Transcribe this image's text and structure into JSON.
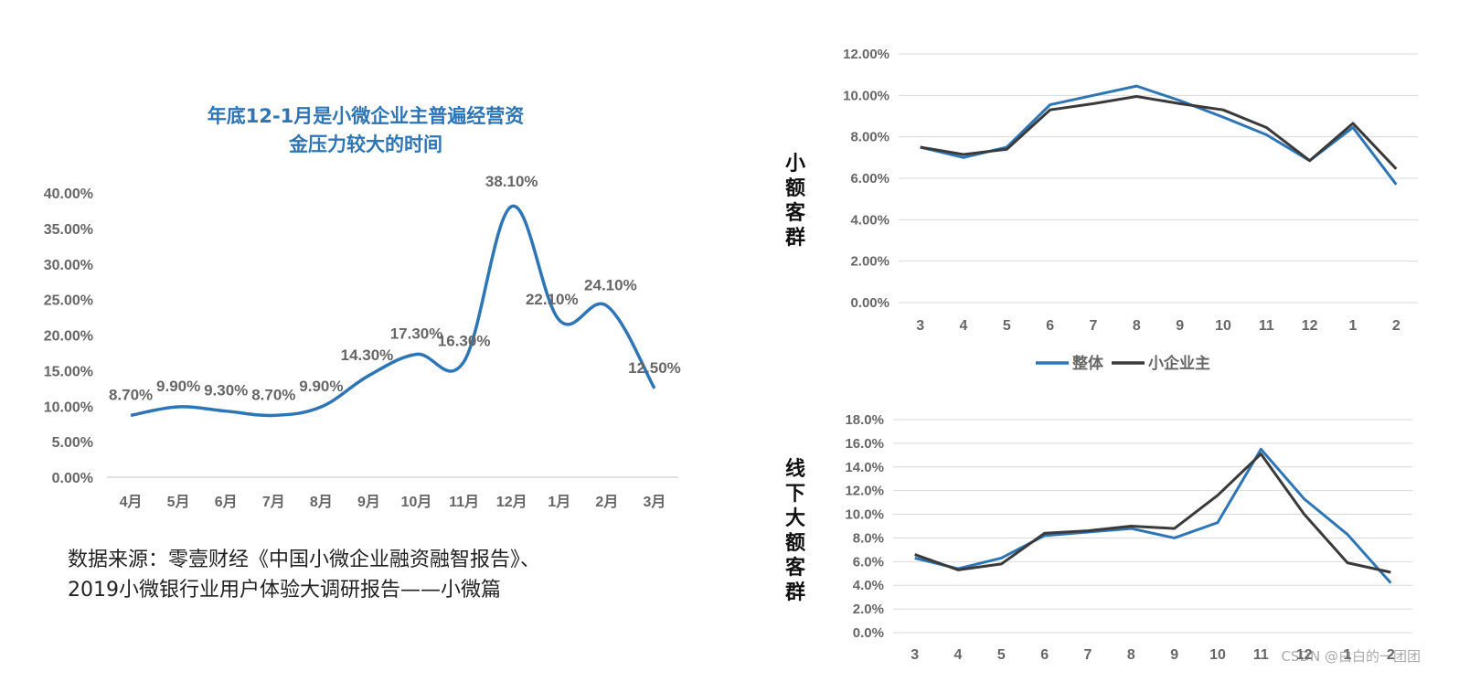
{
  "watermark": "CSDN @白白的一团团",
  "source_line1": "数据来源：零壹财经《中国小微企业融资融智报告》、",
  "source_line2": "2019小微银行业用户体验大调研报告——小微篇",
  "colors": {
    "primary": "#2e75b6",
    "secondary": "#3a3a3a",
    "grid": "#d9d9d9",
    "tick": "#666666"
  },
  "chart_data": [
    {
      "type": "line",
      "title_line1": "年底12-1月是小微企业主普遍经营资",
      "title_line2": "金压力较大的时间",
      "categories": [
        "4月",
        "5月",
        "6月",
        "7月",
        "8月",
        "9月",
        "10月",
        "11月",
        "12月",
        "1月",
        "2月",
        "3月"
      ],
      "values": [
        8.7,
        9.9,
        9.3,
        8.7,
        9.9,
        14.3,
        17.3,
        16.3,
        38.1,
        22.1,
        24.1,
        12.5
      ],
      "data_labels": [
        "8.70%",
        "9.90%",
        "9.30%",
        "8.70%",
        "9.90%",
        "14.30%",
        "17.30%",
        "16.30%",
        "38.10%",
        "22.10%",
        "24.10%",
        "12.50%"
      ],
      "ylim": [
        0,
        40
      ],
      "yticks": [
        "0.00%",
        "5.00%",
        "10.00%",
        "15.00%",
        "20.00%",
        "25.00%",
        "30.00%",
        "35.00%",
        "40.00%"
      ],
      "smooth": true
    },
    {
      "type": "line",
      "panel_label": "小额客群",
      "categories": [
        "3",
        "4",
        "5",
        "6",
        "7",
        "8",
        "9",
        "10",
        "11",
        "12",
        "1",
        "2"
      ],
      "series": [
        {
          "name": "整体",
          "values": [
            7.5,
            7.0,
            7.5,
            9.55,
            10.0,
            10.45,
            9.75,
            8.95,
            8.1,
            6.85,
            8.45,
            5.7
          ]
        },
        {
          "name": "小企业主",
          "values": [
            7.5,
            7.15,
            7.4,
            9.3,
            9.6,
            9.95,
            9.6,
            9.3,
            8.45,
            6.85,
            8.65,
            6.45
          ]
        }
      ],
      "ylim": [
        0,
        12
      ],
      "yticks": [
        "0.00%",
        "2.00%",
        "4.00%",
        "6.00%",
        "8.00%",
        "10.00%",
        "12.00%"
      ],
      "legend": [
        "整体",
        "小企业主"
      ]
    },
    {
      "type": "line",
      "panel_label": "线下大额客群",
      "categories": [
        "3",
        "4",
        "5",
        "6",
        "7",
        "8",
        "9",
        "10",
        "11",
        "12",
        "1",
        "2"
      ],
      "series": [
        {
          "name": "整体",
          "values": [
            6.3,
            5.4,
            6.3,
            8.2,
            8.5,
            8.8,
            8.0,
            9.3,
            15.5,
            11.3,
            8.3,
            4.2
          ]
        },
        {
          "name": "小企业主",
          "values": [
            6.6,
            5.3,
            5.8,
            8.4,
            8.6,
            9.0,
            8.8,
            11.6,
            15.1,
            10.0,
            5.9,
            5.1
          ]
        }
      ],
      "ylim": [
        0,
        18
      ],
      "yticks": [
        "0.0%",
        "2.0%",
        "4.0%",
        "6.0%",
        "8.0%",
        "10.0%",
        "12.0%",
        "14.0%",
        "16.0%",
        "18.0%"
      ]
    }
  ]
}
